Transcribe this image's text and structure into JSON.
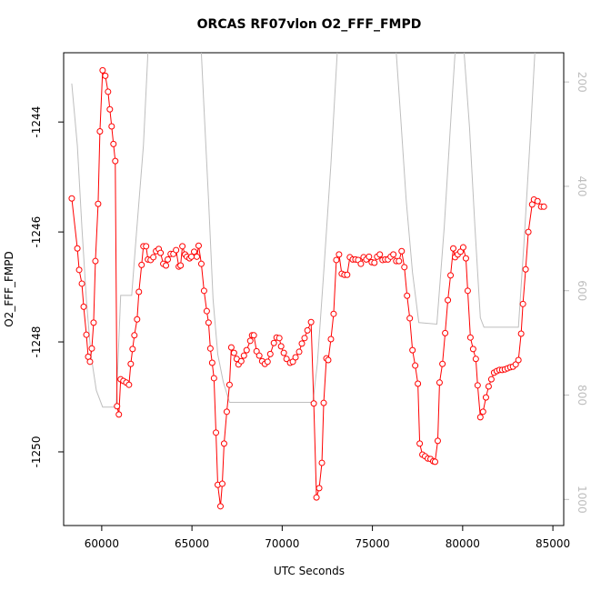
{
  "chart_data": {
    "type": "line",
    "title": "ORCAS RF07vlon O2_FFF_FMPD",
    "x_label": "UTC Seconds",
    "y_label": "O2_FFF_FMPD",
    "xlim": [
      57890,
      85600
    ],
    "ylim": [
      -1251.34,
      -1242.74
    ],
    "y2lim": [
      1050,
      144
    ],
    "xticks": [
      60000,
      65000,
      70000,
      75000,
      80000,
      85000
    ],
    "yticks": [
      -1250,
      -1248,
      -1246,
      -1244
    ],
    "y2ticks": [
      200,
      400,
      600,
      800,
      1000
    ],
    "series": [
      {
        "color": "#ff0000",
        "marker": "circle",
        "x": [
          58340,
          58650,
          58750,
          58900,
          59000,
          59150,
          59250,
          59350,
          59450,
          59550,
          59650,
          59800,
          59900,
          60050,
          60200,
          60350,
          60450,
          60550,
          60650,
          60750,
          60850,
          60950,
          61050,
          61200,
          61360,
          61510,
          61610,
          61710,
          61810,
          61960,
          62060,
          62210,
          62310,
          62460,
          62560,
          62710,
          62860,
          63010,
          63160,
          63260,
          63410,
          63560,
          63660,
          63820,
          63970,
          64120,
          64270,
          64370,
          64470,
          64620,
          64720,
          64870,
          64970,
          65120,
          65270,
          65370,
          65520,
          65670,
          65820,
          65920,
          66020,
          66120,
          66220,
          66330,
          66430,
          66580,
          66680,
          66780,
          66930,
          67080,
          67180,
          67330,
          67480,
          67580,
          67730,
          67880,
          68030,
          68230,
          68330,
          68430,
          68580,
          68730,
          68890,
          69040,
          69190,
          69340,
          69540,
          69690,
          69840,
          69940,
          70090,
          70240,
          70440,
          70590,
          70740,
          70940,
          71090,
          71240,
          71400,
          71600,
          71750,
          71900,
          72050,
          72200,
          72300,
          72450,
          72550,
          72700,
          72850,
          73000,
          73150,
          73300,
          73450,
          73600,
          73750,
          73910,
          74060,
          74210,
          74360,
          74510,
          74660,
          74810,
          74960,
          75110,
          75260,
          75410,
          75560,
          75710,
          75860,
          76010,
          76160,
          76320,
          76470,
          76620,
          76770,
          76920,
          77070,
          77220,
          77370,
          77520,
          77620,
          77770,
          77920,
          78070,
          78220,
          78370,
          78470,
          78620,
          78720,
          78880,
          79030,
          79180,
          79330,
          79480,
          79580,
          79730,
          79880,
          80030,
          80180,
          80280,
          80430,
          80580,
          80730,
          80830,
          80980,
          81130,
          81290,
          81440,
          81590,
          81740,
          81890,
          82040,
          82190,
          82340,
          82490,
          82640,
          82790,
          82940,
          83090,
          83240,
          83340,
          83490,
          83640,
          83850,
          83950,
          84150,
          84350,
          84500
        ],
        "values": [
          -1245.39,
          -1246.3,
          -1246.69,
          -1246.94,
          -1247.36,
          -1247.87,
          -1248.27,
          -1248.36,
          -1248.12,
          -1247.65,
          -1246.53,
          -1245.49,
          -1244.17,
          -1243.06,
          -1243.16,
          -1243.45,
          -1243.77,
          -1244.08,
          -1244.4,
          -1244.71,
          -1249.17,
          -1249.32,
          -1248.68,
          -1248.71,
          -1248.74,
          -1248.78,
          -1248.4,
          -1248.13,
          -1247.88,
          -1247.59,
          -1247.09,
          -1246.6,
          -1246.26,
          -1246.26,
          -1246.5,
          -1246.51,
          -1246.46,
          -1246.35,
          -1246.31,
          -1246.38,
          -1246.58,
          -1246.61,
          -1246.5,
          -1246.4,
          -1246.4,
          -1246.33,
          -1246.63,
          -1246.61,
          -1246.26,
          -1246.41,
          -1246.45,
          -1246.48,
          -1246.45,
          -1246.36,
          -1246.45,
          -1246.25,
          -1246.58,
          -1247.07,
          -1247.44,
          -1247.65,
          -1248.12,
          -1248.38,
          -1248.66,
          -1249.65,
          -1250.6,
          -1250.99,
          -1250.58,
          -1249.85,
          -1249.27,
          -1248.78,
          -1248.1,
          -1248.2,
          -1248.31,
          -1248.41,
          -1248.35,
          -1248.25,
          -1248.15,
          -1247.98,
          -1247.88,
          -1247.88,
          -1248.17,
          -1248.25,
          -1248.35,
          -1248.4,
          -1248.36,
          -1248.22,
          -1248.02,
          -1247.92,
          -1247.93,
          -1248.08,
          -1248.2,
          -1248.31,
          -1248.38,
          -1248.36,
          -1248.28,
          -1248.18,
          -1248.03,
          -1247.93,
          -1247.79,
          -1247.64,
          -1249.12,
          -1250.83,
          -1250.66,
          -1250.2,
          -1249.11,
          -1248.3,
          -1248.33,
          -1247.95,
          -1247.49,
          -1246.51,
          -1246.41,
          -1246.76,
          -1246.78,
          -1246.78,
          -1246.46,
          -1246.5,
          -1246.5,
          -1246.51,
          -1246.58,
          -1246.46,
          -1246.5,
          -1246.45,
          -1246.55,
          -1246.56,
          -1246.45,
          -1246.41,
          -1246.51,
          -1246.5,
          -1246.5,
          -1246.45,
          -1246.41,
          -1246.53,
          -1246.53,
          -1246.35,
          -1246.64,
          -1247.16,
          -1247.57,
          -1248.15,
          -1248.43,
          -1248.76,
          -1249.85,
          -1250.05,
          -1250.08,
          -1250.12,
          -1250.13,
          -1250.17,
          -1250.18,
          -1249.8,
          -1248.74,
          -1248.4,
          -1247.84,
          -1247.24,
          -1246.79,
          -1246.3,
          -1246.46,
          -1246.41,
          -1246.36,
          -1246.28,
          -1246.48,
          -1247.07,
          -1247.92,
          -1248.13,
          -1248.31,
          -1248.79,
          -1249.37,
          -1249.27,
          -1249.01,
          -1248.81,
          -1248.68,
          -1248.56,
          -1248.53,
          -1248.51,
          -1248.51,
          -1248.5,
          -1248.48,
          -1248.46,
          -1248.45,
          -1248.41,
          -1248.33,
          -1247.85,
          -1247.31,
          -1246.68,
          -1246.0,
          -1245.5,
          -1245.41,
          -1245.44,
          -1245.54,
          -1245.54
        ]
      },
      {
        "color": "#bebebe",
        "axis": "y2",
        "x": [
          58340,
          58650,
          58900,
          59150,
          59400,
          59700,
          60050,
          60800,
          61050,
          61660,
          61910,
          62310,
          62560,
          63920,
          65520,
          65670,
          65920,
          66170,
          66430,
          66730,
          67080,
          71700,
          71950,
          72300,
          72700,
          73050,
          74710,
          76320,
          76570,
          76870,
          77220,
          77570,
          78570,
          78980,
          79380,
          79580,
          79830,
          80080,
          80380,
          80680,
          80980,
          81180,
          83090,
          83390,
          83750,
          84000
        ],
        "values": [
          203,
          322,
          478,
          617,
          722,
          791,
          823,
          823,
          609,
          609,
          496,
          322,
          144,
          null,
          144,
          252,
          426,
          617,
          722,
          774,
          814,
          814,
          739,
          565,
          357,
          144,
          null,
          144,
          270,
          426,
          565,
          661,
          664,
          478,
          252,
          144,
          null,
          144,
          287,
          478,
          652,
          670,
          670,
          513,
          304,
          144
        ]
      }
    ]
  }
}
